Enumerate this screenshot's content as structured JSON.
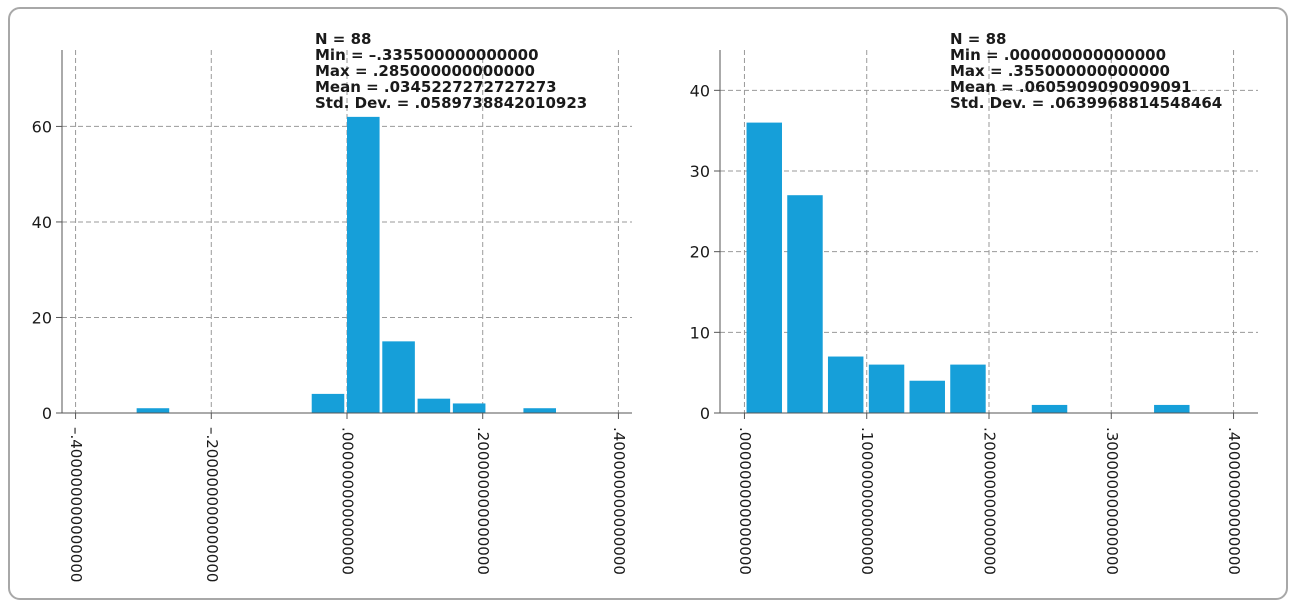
{
  "chart_data": [
    {
      "type": "bar",
      "chart_kind": "histogram",
      "stats": [
        "N = 88",
        "Min = –.335500000000000",
        "Max =  .285000000000000",
        "Mean = .0345227272727273",
        "Std. Dev. = .0589738842010923"
      ],
      "x_ticks": [
        {
          "value": -0.4,
          "label": "–.400000000000000"
        },
        {
          "value": -0.2,
          "label": "–.200000000000000"
        },
        {
          "value": 0.0,
          "label": ".000000000000000"
        },
        {
          "value": 0.2,
          "label": ".200000000000000"
        },
        {
          "value": 0.4,
          "label": ".400000000000000"
        }
      ],
      "y_ticks": [
        0,
        20,
        40,
        60
      ],
      "xlim": [
        -0.42,
        0.42
      ],
      "ylim": [
        0,
        76
      ],
      "grid": true,
      "color": "#169fd9",
      "bars": [
        {
          "x0": -0.31,
          "x1": -0.262,
          "value": 1
        },
        {
          "x0": -0.052,
          "x1": -0.004,
          "value": 4
        },
        {
          "x0": 0.0,
          "x1": 0.048,
          "value": 62
        },
        {
          "x0": 0.052,
          "x1": 0.1,
          "value": 15
        },
        {
          "x0": 0.104,
          "x1": 0.152,
          "value": 3
        },
        {
          "x0": 0.156,
          "x1": 0.204,
          "value": 2
        },
        {
          "x0": 0.26,
          "x1": 0.308,
          "value": 1
        }
      ]
    },
    {
      "type": "bar",
      "chart_kind": "histogram",
      "stats": [
        "N = 88",
        "Min = .000000000000000",
        "Max =  .355000000000000",
        "Mean = .0605909090909091",
        "Std. Dev. = .0639968814548464"
      ],
      "x_ticks": [
        {
          "value": 0.0,
          "label": ".000000000000000"
        },
        {
          "value": 0.1,
          "label": ".100000000000000"
        },
        {
          "value": 0.2,
          "label": ".200000000000000"
        },
        {
          "value": 0.3,
          "label": ".300000000000000"
        },
        {
          "value": 0.4,
          "label": ".400000000000000"
        }
      ],
      "y_ticks": [
        0,
        10,
        20,
        30,
        40
      ],
      "xlim": [
        -0.02,
        0.42
      ],
      "ylim": [
        0,
        45
      ],
      "grid": true,
      "color": "#169fd9",
      "bars": [
        {
          "x0": 0.0017,
          "x1": 0.0307,
          "value": 36
        },
        {
          "x0": 0.035,
          "x1": 0.064,
          "value": 27
        },
        {
          "x0": 0.0683,
          "x1": 0.0973,
          "value": 7
        },
        {
          "x0": 0.1017,
          "x1": 0.1307,
          "value": 6
        },
        {
          "x0": 0.135,
          "x1": 0.164,
          "value": 4
        },
        {
          "x0": 0.1683,
          "x1": 0.1973,
          "value": 6
        },
        {
          "x0": 0.235,
          "x1": 0.264,
          "value": 1
        },
        {
          "x0": 0.335,
          "x1": 0.364,
          "value": 1
        }
      ]
    }
  ]
}
